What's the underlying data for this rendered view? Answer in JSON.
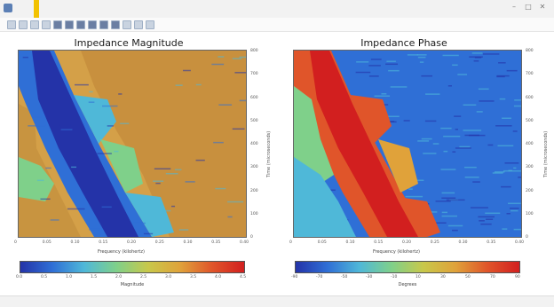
{
  "window": {
    "title": "",
    "controls": [
      "–",
      "□",
      "✕"
    ]
  },
  "toolbar": {
    "icons": [
      "open-icon",
      "save-icon",
      "zoom-in-icon",
      "zoom-out-icon",
      "pan-icon",
      "home-icon",
      "back-icon",
      "forward-icon",
      "grid-icon",
      "cursor-icon",
      "export-icon",
      "print-icon",
      "settings-icon"
    ]
  },
  "panels": {
    "magnitude": {
      "title": "Impedance Magnitude",
      "xlabel": "Frequency (kilohertz)",
      "ylabel": "Time (microseconds)",
      "colorbar_label": "Magnitude"
    },
    "phase": {
      "title": "Impedance Phase",
      "xlabel": "Frequency (kilohertz)",
      "ylabel": "Time (microseconds)",
      "colorbar_label": "Degrees"
    }
  },
  "chart_data": [
    {
      "type": "heatmap",
      "title": "Impedance Magnitude",
      "xlabel": "Frequency (kilohertz)",
      "ylabel": "Time (microseconds)",
      "x_ticks": [
        "0",
        "0.05",
        "0.10",
        "0.15",
        "0.20",
        "0.25",
        "0.30",
        "0.35",
        "0.40"
      ],
      "y_ticks": [
        "0",
        "100",
        "200",
        "300",
        "400",
        "500",
        "600",
        "700",
        "800"
      ],
      "colorbar_ticks": [
        "0.0",
        "0.5",
        "1.0",
        "1.5",
        "2.0",
        "2.5",
        "3.0",
        "3.5",
        "4.0",
        "4.5"
      ],
      "colormap": [
        "#2433a8",
        "#2f6fd6",
        "#4fb8d8",
        "#7fd08a",
        "#c8c84a",
        "#e0a23a",
        "#e0552a",
        "#d21f1f"
      ]
    },
    {
      "type": "heatmap",
      "title": "Impedance Phase",
      "xlabel": "Frequency (kilohertz)",
      "ylabel": "Time (microseconds)",
      "x_ticks": [
        "0",
        "0.05",
        "0.10",
        "0.15",
        "0.20",
        "0.25",
        "0.30",
        "0.35",
        "0.40"
      ],
      "y_ticks": [
        "0",
        "100",
        "200",
        "300",
        "400",
        "500",
        "600",
        "700",
        "800"
      ],
      "colorbar_ticks": [
        "-90",
        "-70",
        "-50",
        "-30",
        "-10",
        "10",
        "30",
        "50",
        "70",
        "90"
      ],
      "colormap": [
        "#2433a8",
        "#2f6fd6",
        "#4fb8d8",
        "#7fd08a",
        "#c8c84a",
        "#e0a23a",
        "#e0552a",
        "#d21f1f"
      ]
    }
  ]
}
